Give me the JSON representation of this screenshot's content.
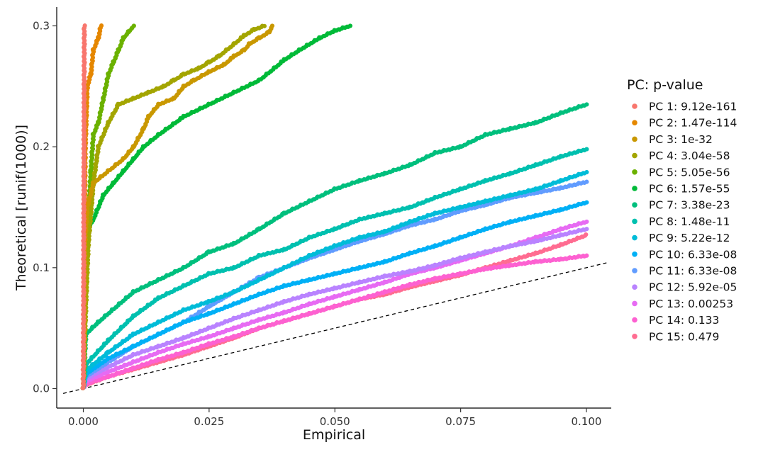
{
  "chart_data": {
    "type": "scatter",
    "title": "",
    "xlabel": "Empirical",
    "ylabel": "Theoretical [runif(1000)]",
    "xlim": [
      -0.0045,
      0.1045
    ],
    "ylim": [
      -0.016,
      0.31
    ],
    "x_ticks": [
      0.0,
      0.025,
      0.05,
      0.075,
      0.1
    ],
    "x_tick_labels": [
      "0.000",
      "0.025",
      "0.050",
      "0.075",
      "0.100"
    ],
    "y_ticks": [
      0.0,
      0.1,
      0.2,
      0.3
    ],
    "y_tick_labels": [
      "0.0",
      "0.1",
      "0.2",
      "0.3"
    ],
    "grid": false,
    "legend": {
      "title": "PC: p-value",
      "position": "right"
    },
    "reference_line": {
      "style": "dashed",
      "points": [
        [
          -0.004,
          -0.004
        ],
        [
          0.104,
          0.104
        ]
      ]
    },
    "series": [
      {
        "name": "PC 1: 9.12e-161",
        "color": "#F8766D",
        "points": [
          [
            0,
            0
          ],
          [
            0.0002,
            0.3
          ]
        ]
      },
      {
        "name": "PC 2: 1.47e-114",
        "color": "#E58700",
        "points": [
          [
            0,
            0
          ],
          [
            0.0002,
            0.12
          ],
          [
            0.0004,
            0.2
          ],
          [
            0.0008,
            0.25
          ],
          [
            0.0015,
            0.26
          ],
          [
            0.002,
            0.28
          ],
          [
            0.003,
            0.29
          ],
          [
            0.0035,
            0.3
          ]
        ]
      },
      {
        "name": "PC 3: 1e-32",
        "color": "#C99800",
        "points": [
          [
            0,
            0
          ],
          [
            0.0003,
            0.12
          ],
          [
            0.0008,
            0.15
          ],
          [
            0.002,
            0.17
          ],
          [
            0.005,
            0.18
          ],
          [
            0.008,
            0.19
          ],
          [
            0.01,
            0.2
          ],
          [
            0.012,
            0.215
          ],
          [
            0.013,
            0.225
          ],
          [
            0.015,
            0.235
          ],
          [
            0.018,
            0.24
          ],
          [
            0.02,
            0.25
          ],
          [
            0.022,
            0.255
          ],
          [
            0.025,
            0.262
          ],
          [
            0.028,
            0.268
          ],
          [
            0.03,
            0.275
          ],
          [
            0.032,
            0.28
          ],
          [
            0.033,
            0.285
          ],
          [
            0.035,
            0.29
          ],
          [
            0.037,
            0.295
          ],
          [
            0.0375,
            0.3
          ]
        ]
      },
      {
        "name": "PC 4: 3.04e-58",
        "color": "#A3A500",
        "points": [
          [
            0,
            0
          ],
          [
            0.0005,
            0.07
          ],
          [
            0.001,
            0.12
          ],
          [
            0.002,
            0.17
          ],
          [
            0.003,
            0.2
          ],
          [
            0.005,
            0.22
          ],
          [
            0.007,
            0.235
          ],
          [
            0.01,
            0.24
          ],
          [
            0.013,
            0.245
          ],
          [
            0.016,
            0.25
          ],
          [
            0.018,
            0.255
          ],
          [
            0.02,
            0.26
          ],
          [
            0.023,
            0.265
          ],
          [
            0.025,
            0.27
          ],
          [
            0.027,
            0.275
          ],
          [
            0.03,
            0.285
          ],
          [
            0.032,
            0.292
          ],
          [
            0.034,
            0.297
          ],
          [
            0.036,
            0.3
          ]
        ]
      },
      {
        "name": "PC 5: 5.05e-56",
        "color": "#6BB100",
        "points": [
          [
            0,
            0
          ],
          [
            0.0005,
            0.07
          ],
          [
            0.001,
            0.14
          ],
          [
            0.0015,
            0.18
          ],
          [
            0.002,
            0.21
          ],
          [
            0.003,
            0.22
          ],
          [
            0.004,
            0.24
          ],
          [
            0.005,
            0.26
          ],
          [
            0.006,
            0.27
          ],
          [
            0.007,
            0.28
          ],
          [
            0.008,
            0.29
          ],
          [
            0.009,
            0.295
          ],
          [
            0.01,
            0.3
          ]
        ]
      },
      {
        "name": "PC 6: 1.57e-55",
        "color": "#00BA38",
        "points": [
          [
            0,
            0
          ],
          [
            0.0003,
            0.08
          ],
          [
            0.0006,
            0.13
          ],
          [
            0.002,
            0.14
          ],
          [
            0.004,
            0.16
          ],
          [
            0.006,
            0.17
          ],
          [
            0.008,
            0.18
          ],
          [
            0.01,
            0.19
          ],
          [
            0.012,
            0.2
          ],
          [
            0.015,
            0.21
          ],
          [
            0.02,
            0.225
          ],
          [
            0.025,
            0.235
          ],
          [
            0.03,
            0.245
          ],
          [
            0.035,
            0.255
          ],
          [
            0.038,
            0.265
          ],
          [
            0.04,
            0.272
          ],
          [
            0.043,
            0.28
          ],
          [
            0.047,
            0.29
          ],
          [
            0.05,
            0.296
          ],
          [
            0.053,
            0.3
          ]
        ]
      },
      {
        "name": "PC 7: 3.38e-23",
        "color": "#00BF7D",
        "points": [
          [
            0,
            0
          ],
          [
            0.0005,
            0.045
          ],
          [
            0.003,
            0.055
          ],
          [
            0.01,
            0.08
          ],
          [
            0.015,
            0.09
          ],
          [
            0.02,
            0.1
          ],
          [
            0.025,
            0.113
          ],
          [
            0.03,
            0.12
          ],
          [
            0.035,
            0.132
          ],
          [
            0.04,
            0.145
          ],
          [
            0.045,
            0.155
          ],
          [
            0.05,
            0.165
          ],
          [
            0.055,
            0.172
          ],
          [
            0.06,
            0.178
          ],
          [
            0.065,
            0.185
          ],
          [
            0.07,
            0.195
          ],
          [
            0.075,
            0.2
          ],
          [
            0.08,
            0.21
          ],
          [
            0.085,
            0.215
          ],
          [
            0.09,
            0.22
          ],
          [
            0.095,
            0.228
          ],
          [
            0.1,
            0.235
          ]
        ]
      },
      {
        "name": "PC 8: 1.48e-11",
        "color": "#00C0AF",
        "points": [
          [
            0,
            0
          ],
          [
            0.0005,
            0.02
          ],
          [
            0.005,
            0.04
          ],
          [
            0.01,
            0.06
          ],
          [
            0.015,
            0.075
          ],
          [
            0.02,
            0.085
          ],
          [
            0.025,
            0.095
          ],
          [
            0.03,
            0.1
          ],
          [
            0.035,
            0.11
          ],
          [
            0.04,
            0.115
          ],
          [
            0.045,
            0.125
          ],
          [
            0.05,
            0.132
          ],
          [
            0.055,
            0.14
          ],
          [
            0.06,
            0.145
          ],
          [
            0.065,
            0.15
          ],
          [
            0.07,
            0.158
          ],
          [
            0.075,
            0.165
          ],
          [
            0.08,
            0.172
          ],
          [
            0.085,
            0.178
          ],
          [
            0.09,
            0.185
          ],
          [
            0.095,
            0.192
          ],
          [
            0.1,
            0.198
          ]
        ]
      },
      {
        "name": "PC 9: 5.22e-12",
        "color": "#00BCD8",
        "points": [
          [
            0,
            0
          ],
          [
            0.0005,
            0.015
          ],
          [
            0.005,
            0.03
          ],
          [
            0.01,
            0.045
          ],
          [
            0.015,
            0.055
          ],
          [
            0.02,
            0.065
          ],
          [
            0.025,
            0.072
          ],
          [
            0.03,
            0.08
          ],
          [
            0.035,
            0.09
          ],
          [
            0.04,
            0.1
          ],
          [
            0.045,
            0.11
          ],
          [
            0.05,
            0.118
          ],
          [
            0.055,
            0.125
          ],
          [
            0.06,
            0.13
          ],
          [
            0.065,
            0.138
          ],
          [
            0.07,
            0.145
          ],
          [
            0.075,
            0.15
          ],
          [
            0.08,
            0.155
          ],
          [
            0.085,
            0.16
          ],
          [
            0.09,
            0.165
          ],
          [
            0.095,
            0.172
          ],
          [
            0.1,
            0.179
          ]
        ]
      },
      {
        "name": "PC 10: 6.33e-08",
        "color": "#00B0F6",
        "points": [
          [
            0,
            0
          ],
          [
            0.0005,
            0.012
          ],
          [
            0.005,
            0.025
          ],
          [
            0.01,
            0.035
          ],
          [
            0.015,
            0.045
          ],
          [
            0.02,
            0.055
          ],
          [
            0.025,
            0.062
          ],
          [
            0.03,
            0.07
          ],
          [
            0.035,
            0.078
          ],
          [
            0.04,
            0.085
          ],
          [
            0.045,
            0.09
          ],
          [
            0.05,
            0.095
          ],
          [
            0.055,
            0.1
          ],
          [
            0.06,
            0.105
          ],
          [
            0.065,
            0.112
          ],
          [
            0.07,
            0.118
          ],
          [
            0.075,
            0.125
          ],
          [
            0.08,
            0.132
          ],
          [
            0.085,
            0.138
          ],
          [
            0.09,
            0.143
          ],
          [
            0.095,
            0.148
          ],
          [
            0.1,
            0.154
          ]
        ]
      },
      {
        "name": "PC 11: 6.33e-08",
        "color": "#619CFF",
        "points": [
          [
            0,
            0
          ],
          [
            0.0005,
            0.01
          ],
          [
            0.005,
            0.022
          ],
          [
            0.01,
            0.035
          ],
          [
            0.015,
            0.045
          ],
          [
            0.02,
            0.055
          ],
          [
            0.025,
            0.068
          ],
          [
            0.03,
            0.08
          ],
          [
            0.035,
            0.092
          ],
          [
            0.04,
            0.1
          ],
          [
            0.045,
            0.108
          ],
          [
            0.05,
            0.115
          ],
          [
            0.055,
            0.122
          ],
          [
            0.06,
            0.128
          ],
          [
            0.065,
            0.135
          ],
          [
            0.07,
            0.14
          ],
          [
            0.075,
            0.147
          ],
          [
            0.08,
            0.152
          ],
          [
            0.085,
            0.158
          ],
          [
            0.09,
            0.162
          ],
          [
            0.095,
            0.166
          ],
          [
            0.1,
            0.171
          ]
        ]
      },
      {
        "name": "PC 12: 5.92e-05",
        "color": "#B983FF",
        "points": [
          [
            0,
            0
          ],
          [
            0.0005,
            0.008
          ],
          [
            0.005,
            0.018
          ],
          [
            0.01,
            0.028
          ],
          [
            0.015,
            0.035
          ],
          [
            0.02,
            0.042
          ],
          [
            0.025,
            0.05
          ],
          [
            0.03,
            0.058
          ],
          [
            0.035,
            0.065
          ],
          [
            0.04,
            0.072
          ],
          [
            0.045,
            0.078
          ],
          [
            0.05,
            0.083
          ],
          [
            0.055,
            0.088
          ],
          [
            0.06,
            0.093
          ],
          [
            0.065,
            0.097
          ],
          [
            0.07,
            0.102
          ],
          [
            0.075,
            0.108
          ],
          [
            0.08,
            0.113
          ],
          [
            0.085,
            0.118
          ],
          [
            0.09,
            0.122
          ],
          [
            0.095,
            0.127
          ],
          [
            0.1,
            0.132
          ]
        ]
      },
      {
        "name": "PC 13: 0.00253",
        "color": "#E76BF3",
        "points": [
          [
            0,
            0
          ],
          [
            0.0005,
            0.006
          ],
          [
            0.005,
            0.014
          ],
          [
            0.01,
            0.022
          ],
          [
            0.015,
            0.03
          ],
          [
            0.02,
            0.037
          ],
          [
            0.025,
            0.043
          ],
          [
            0.03,
            0.05
          ],
          [
            0.035,
            0.057
          ],
          [
            0.04,
            0.063
          ],
          [
            0.045,
            0.07
          ],
          [
            0.05,
            0.076
          ],
          [
            0.055,
            0.082
          ],
          [
            0.06,
            0.088
          ],
          [
            0.065,
            0.095
          ],
          [
            0.07,
            0.1
          ],
          [
            0.075,
            0.106
          ],
          [
            0.08,
            0.112
          ],
          [
            0.085,
            0.118
          ],
          [
            0.09,
            0.125
          ],
          [
            0.095,
            0.132
          ],
          [
            0.1,
            0.138
          ]
        ]
      },
      {
        "name": "PC 14: 0.133",
        "color": "#FD61D1",
        "points": [
          [
            0,
            0
          ],
          [
            0.0005,
            0.004
          ],
          [
            0.005,
            0.01
          ],
          [
            0.01,
            0.017
          ],
          [
            0.015,
            0.024
          ],
          [
            0.02,
            0.03
          ],
          [
            0.025,
            0.037
          ],
          [
            0.03,
            0.043
          ],
          [
            0.035,
            0.05
          ],
          [
            0.04,
            0.056
          ],
          [
            0.045,
            0.062
          ],
          [
            0.05,
            0.068
          ],
          [
            0.055,
            0.074
          ],
          [
            0.06,
            0.08
          ],
          [
            0.065,
            0.086
          ],
          [
            0.07,
            0.091
          ],
          [
            0.075,
            0.095
          ],
          [
            0.08,
            0.099
          ],
          [
            0.085,
            0.102
          ],
          [
            0.09,
            0.105
          ],
          [
            0.095,
            0.107
          ],
          [
            0.1,
            0.11
          ]
        ]
      },
      {
        "name": "PC 15: 0.479",
        "color": "#FF6C91",
        "points": [
          [
            0,
            0
          ],
          [
            0.0005,
            0.003
          ],
          [
            0.005,
            0.01
          ],
          [
            0.01,
            0.016
          ],
          [
            0.015,
            0.022
          ],
          [
            0.02,
            0.028
          ],
          [
            0.025,
            0.035
          ],
          [
            0.03,
            0.042
          ],
          [
            0.035,
            0.05
          ],
          [
            0.04,
            0.056
          ],
          [
            0.045,
            0.062
          ],
          [
            0.05,
            0.068
          ],
          [
            0.055,
            0.074
          ],
          [
            0.06,
            0.078
          ],
          [
            0.065,
            0.084
          ],
          [
            0.07,
            0.089
          ],
          [
            0.075,
            0.094
          ],
          [
            0.08,
            0.1
          ],
          [
            0.085,
            0.106
          ],
          [
            0.09,
            0.112
          ],
          [
            0.095,
            0.119
          ],
          [
            0.1,
            0.127
          ]
        ]
      }
    ]
  }
}
